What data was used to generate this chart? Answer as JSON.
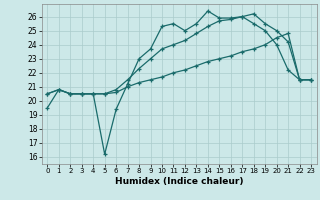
{
  "xlabel": "Humidex (Indice chaleur)",
  "bg_color": "#cce8e8",
  "grid_color": "#aacccc",
  "line_color": "#1a6b6b",
  "xlim": [
    -0.5,
    23.5
  ],
  "ylim": [
    15.5,
    26.9
  ],
  "xticks": [
    0,
    1,
    2,
    3,
    4,
    5,
    6,
    7,
    8,
    9,
    10,
    11,
    12,
    13,
    14,
    15,
    16,
    17,
    18,
    19,
    20,
    21,
    22,
    23
  ],
  "yticks": [
    16,
    17,
    18,
    19,
    20,
    21,
    22,
    23,
    24,
    25,
    26
  ],
  "line1_x": [
    0,
    1,
    2,
    3,
    4,
    5,
    6,
    7,
    8,
    9,
    10,
    11,
    12,
    13,
    14,
    15,
    16,
    17,
    18,
    19,
    20,
    21,
    22,
    23
  ],
  "line1_y": [
    19.5,
    20.8,
    20.5,
    20.5,
    20.5,
    16.2,
    19.4,
    21.2,
    23.0,
    23.7,
    25.3,
    25.5,
    25.0,
    25.5,
    26.4,
    25.9,
    25.9,
    26.0,
    25.5,
    25.0,
    24.0,
    22.2,
    21.5,
    21.5
  ],
  "line2_x": [
    0,
    1,
    2,
    3,
    4,
    5,
    6,
    7,
    8,
    9,
    10,
    11,
    12,
    13,
    14,
    15,
    16,
    17,
    18,
    19,
    20,
    21,
    22,
    23
  ],
  "line2_y": [
    20.5,
    20.8,
    20.5,
    20.5,
    20.5,
    20.5,
    20.6,
    21.0,
    21.3,
    21.5,
    21.7,
    22.0,
    22.2,
    22.5,
    22.8,
    23.0,
    23.2,
    23.5,
    23.7,
    24.0,
    24.5,
    24.8,
    21.5,
    21.5
  ],
  "line3_x": [
    0,
    1,
    2,
    3,
    4,
    5,
    6,
    7,
    8,
    9,
    10,
    11,
    12,
    13,
    14,
    15,
    16,
    17,
    18,
    19,
    20,
    21,
    22,
    23
  ],
  "line3_y": [
    20.5,
    20.8,
    20.5,
    20.5,
    20.5,
    20.5,
    20.8,
    21.5,
    22.3,
    23.0,
    23.7,
    24.0,
    24.3,
    24.8,
    25.3,
    25.7,
    25.8,
    26.0,
    26.2,
    25.5,
    25.0,
    24.2,
    21.5,
    21.5
  ]
}
